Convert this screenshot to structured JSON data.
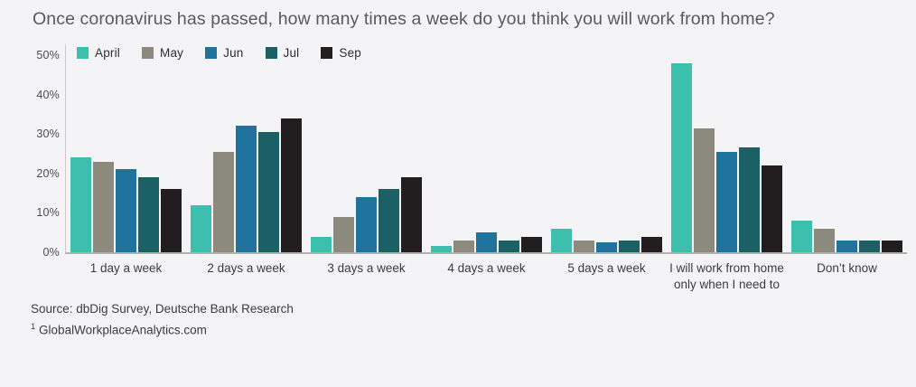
{
  "title": "Once coronavirus has passed, how many times a week do you think you will work from home?",
  "source": {
    "line1": "Source: dbDig Survey, Deutsche Bank Research",
    "footnote_marker": "1",
    "line2": " GlobalWorkplaceAnalytics.com"
  },
  "colors": {
    "background": "#f4f3f5",
    "title_text": "#595a5e",
    "tick_text": "#4c4c4f",
    "category_text": "#3c3c3f",
    "axis_line": "#cbc8c6",
    "baseline": "#b3b0ad"
  },
  "chart_data": {
    "type": "bar",
    "title": "Once coronavirus has passed, how many times a week do you think you will work from home?",
    "categories": [
      "1 day a week",
      "2 days a week",
      "3 days a week",
      "4 days a week",
      "5 days a week",
      "I will work from home\nonly when I need to",
      "Don’t know"
    ],
    "series": [
      {
        "name": "April",
        "color": "#3cbfac",
        "values": [
          24,
          12,
          4,
          1.5,
          6,
          48,
          8
        ]
      },
      {
        "name": "May",
        "color": "#8c8a7d",
        "values": [
          23,
          25.5,
          9,
          3,
          3,
          31.5,
          6
        ]
      },
      {
        "name": "Jun",
        "color": "#20739d",
        "values": [
          21,
          32,
          14,
          5,
          2.5,
          25.5,
          3
        ]
      },
      {
        "name": "Jul",
        "color": "#1a6064",
        "values": [
          19,
          30.5,
          16,
          3,
          3,
          26.5,
          3
        ]
      },
      {
        "name": "Sep",
        "color": "#221e1f",
        "values": [
          16,
          34,
          19,
          4,
          4,
          22,
          3
        ]
      }
    ],
    "xlabel": "",
    "ylabel": "",
    "ylim": [
      0,
      50
    ],
    "ytick_values": [
      0,
      10,
      20,
      30,
      40,
      50
    ],
    "ytick_labels": [
      "0%",
      "10%",
      "20%",
      "30%",
      "40%",
      "50%"
    ],
    "grid": false,
    "legend_position": "top-left"
  }
}
